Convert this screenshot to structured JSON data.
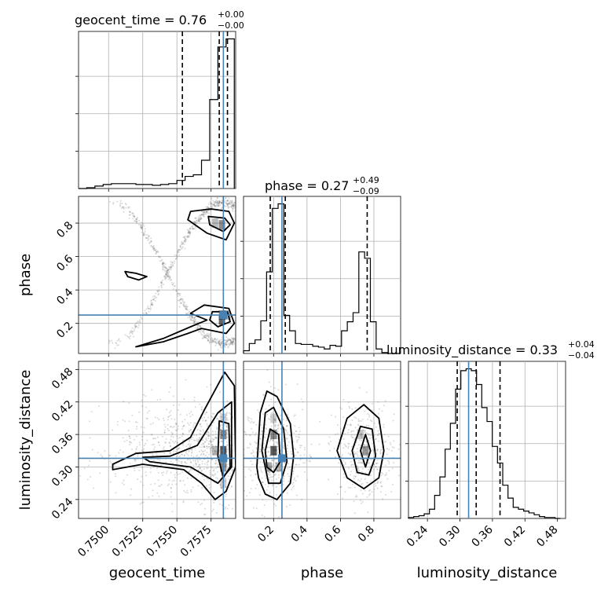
{
  "chart_data": {
    "type": "corner",
    "truth_color": "#4682b4",
    "parameters": [
      {
        "name": "geocent_time",
        "xlabel": "geocent_time",
        "title_main": "geocent_time = 0.76",
        "title_plus": "+0.00",
        "title_minus": "−0.00",
        "range": [
          0.7478,
          0.7593
        ],
        "ticks": [
          0.75,
          0.7525,
          0.755,
          0.7575
        ],
        "tick_labels": [
          "0.7500",
          "0.7525",
          "0.7550",
          "0.7575"
        ],
        "truth": 0.7584,
        "quantiles": [
          0.7554,
          0.7581,
          0.7587
        ],
        "hist": {
          "bin_edges": [
            0.7478,
            0.7484,
            0.749,
            0.7496,
            0.7502,
            0.7508,
            0.7514,
            0.752,
            0.7526,
            0.7532,
            0.7538,
            0.7544,
            0.755,
            0.7556,
            0.7562,
            0.7568,
            0.7574,
            0.758,
            0.7586,
            0.7592
          ],
          "counts": [
            0,
            1,
            3,
            5,
            6,
            6,
            6,
            5,
            5,
            4,
            5,
            6,
            10,
            15,
            17,
            35,
            110,
            175,
            185
          ]
        }
      },
      {
        "name": "phase",
        "xlabel": "phase",
        "ylabel": "phase",
        "title_main": "phase = 0.27",
        "title_plus": "+0.49",
        "title_minus": "−0.09",
        "range": [
          0.02,
          0.96
        ],
        "ticks": [
          0.2,
          0.4,
          0.6,
          0.8
        ],
        "tick_labels": [
          "0.2",
          "0.4",
          "0.6",
          "0.8"
        ],
        "truth": 0.25,
        "quantiles": [
          0.18,
          0.27,
          0.76
        ],
        "hist": {
          "bin_edges": [
            0.02,
            0.0545,
            0.089,
            0.1235,
            0.158,
            0.1925,
            0.227,
            0.2615,
            0.296,
            0.3305,
            0.365,
            0.3995,
            0.434,
            0.4685,
            0.503,
            0.5375,
            0.572,
            0.6065,
            0.641,
            0.6755,
            0.71,
            0.7445,
            0.779,
            0.8135,
            0.848,
            0.8825,
            0.917,
            0.9515
          ],
          "counts": [
            3,
            11,
            15,
            36,
            90,
            160,
            165,
            42,
            25,
            11,
            10,
            10,
            8,
            7,
            5,
            9,
            8,
            25,
            35,
            45,
            112,
            105,
            35,
            5,
            1,
            0,
            0
          ]
        }
      },
      {
        "name": "luminosity_distance",
        "xlabel": "luminosity_distance",
        "ylabel": "luminosity_distance",
        "title_main": "luminosity_distance = 0.33",
        "title_plus": "+0.04",
        "title_minus": "−0.04",
        "range": [
          0.205,
          0.495
        ],
        "ticks": [
          0.24,
          0.3,
          0.36,
          0.42,
          0.48
        ],
        "tick_labels": [
          "0.24",
          "0.30",
          "0.36",
          "0.42",
          "0.48"
        ],
        "truth": 0.316,
        "quantiles": [
          0.295,
          0.33,
          0.374
        ],
        "hist": {
          "bin_edges": [
            0.205,
            0.2147,
            0.2243,
            0.234,
            0.2437,
            0.2533,
            0.263,
            0.2727,
            0.2823,
            0.292,
            0.3017,
            0.3113,
            0.321,
            0.3307,
            0.3403,
            0.35,
            0.3597,
            0.3693,
            0.379,
            0.3887,
            0.3983,
            0.408,
            0.4177,
            0.4273,
            0.437,
            0.4467,
            0.4563,
            0.466,
            0.4757,
            0.4853
          ],
          "counts": [
            1,
            2,
            3,
            5,
            10,
            25,
            45,
            75,
            103,
            140,
            160,
            162,
            160,
            145,
            120,
            105,
            78,
            60,
            36,
            22,
            12,
            10,
            8,
            6,
            4,
            2,
            1,
            1,
            0
          ]
        }
      }
    ],
    "contours": {
      "geocent_time__phase": [
        [
          [
            0.756,
            0.87
          ],
          [
            0.7575,
            0.885
          ],
          [
            0.7588,
            0.87
          ],
          [
            0.7592,
            0.8
          ],
          [
            0.7586,
            0.7
          ],
          [
            0.7572,
            0.74
          ],
          [
            0.7558,
            0.82
          ],
          [
            0.756,
            0.87
          ]
        ],
        [
          [
            0.7573,
            0.84
          ],
          [
            0.7585,
            0.83
          ],
          [
            0.7589,
            0.79
          ],
          [
            0.7584,
            0.75
          ],
          [
            0.7574,
            0.79
          ],
          [
            0.7573,
            0.84
          ]
        ],
        [
          [
            0.7512,
            0.51
          ],
          [
            0.752,
            0.5
          ],
          [
            0.7528,
            0.48
          ],
          [
            0.7522,
            0.46
          ],
          [
            0.7514,
            0.48
          ],
          [
            0.7512,
            0.51
          ]
        ],
        [
          [
            0.752,
            0.06
          ],
          [
            0.754,
            0.09
          ],
          [
            0.7558,
            0.14
          ],
          [
            0.7568,
            0.17
          ],
          [
            0.7586,
            0.14
          ],
          [
            0.7592,
            0.2
          ],
          [
            0.7588,
            0.29
          ],
          [
            0.757,
            0.31
          ],
          [
            0.756,
            0.26
          ],
          [
            0.7572,
            0.22
          ],
          [
            0.756,
            0.18
          ],
          [
            0.754,
            0.11
          ],
          [
            0.752,
            0.06
          ]
        ],
        [
          [
            0.7576,
            0.27
          ],
          [
            0.7587,
            0.27
          ],
          [
            0.7589,
            0.21
          ],
          [
            0.758,
            0.18
          ],
          [
            0.7574,
            0.22
          ],
          [
            0.7576,
            0.27
          ]
        ]
      ],
      "geocent_time__luminosity_distance": [
        [
          [
            0.7503,
            0.305
          ],
          [
            0.752,
            0.325
          ],
          [
            0.7545,
            0.33
          ],
          [
            0.756,
            0.355
          ],
          [
            0.757,
            0.405
          ],
          [
            0.7585,
            0.475
          ],
          [
            0.7592,
            0.45
          ],
          [
            0.7593,
            0.3
          ],
          [
            0.7586,
            0.255
          ],
          [
            0.7578,
            0.24
          ],
          [
            0.7568,
            0.27
          ],
          [
            0.7555,
            0.295
          ],
          [
            0.754,
            0.3
          ],
          [
            0.7525,
            0.305
          ],
          [
            0.7503,
            0.295
          ],
          [
            0.7503,
            0.305
          ]
        ],
        [
          [
            0.7525,
            0.318
          ],
          [
            0.7545,
            0.32
          ],
          [
            0.7565,
            0.34
          ],
          [
            0.758,
            0.4
          ],
          [
            0.759,
            0.42
          ],
          [
            0.759,
            0.3
          ],
          [
            0.758,
            0.27
          ],
          [
            0.756,
            0.3
          ],
          [
            0.753,
            0.31
          ],
          [
            0.7525,
            0.318
          ]
        ],
        [
          [
            0.7581,
            0.385
          ],
          [
            0.7588,
            0.38
          ],
          [
            0.7589,
            0.3
          ],
          [
            0.7584,
            0.28
          ],
          [
            0.758,
            0.32
          ],
          [
            0.7581,
            0.385
          ]
        ]
      ],
      "phase__luminosity_distance": [
        [
          [
            0.1,
            0.3
          ],
          [
            0.12,
            0.4
          ],
          [
            0.16,
            0.44
          ],
          [
            0.22,
            0.43
          ],
          [
            0.3,
            0.38
          ],
          [
            0.32,
            0.32
          ],
          [
            0.3,
            0.27
          ],
          [
            0.22,
            0.24
          ],
          [
            0.15,
            0.25
          ],
          [
            0.11,
            0.28
          ],
          [
            0.1,
            0.3
          ]
        ],
        [
          [
            0.13,
            0.33
          ],
          [
            0.15,
            0.4
          ],
          [
            0.2,
            0.41
          ],
          [
            0.26,
            0.37
          ],
          [
            0.28,
            0.31
          ],
          [
            0.24,
            0.27
          ],
          [
            0.17,
            0.27
          ],
          [
            0.13,
            0.33
          ]
        ],
        [
          [
            0.15,
            0.33
          ],
          [
            0.18,
            0.37
          ],
          [
            0.23,
            0.36
          ],
          [
            0.24,
            0.31
          ],
          [
            0.2,
            0.29
          ],
          [
            0.16,
            0.3
          ],
          [
            0.15,
            0.33
          ]
        ],
        [
          [
            0.58,
            0.33
          ],
          [
            0.64,
            0.39
          ],
          [
            0.74,
            0.415
          ],
          [
            0.83,
            0.39
          ],
          [
            0.86,
            0.33
          ],
          [
            0.83,
            0.28
          ],
          [
            0.74,
            0.26
          ],
          [
            0.64,
            0.28
          ],
          [
            0.58,
            0.33
          ]
        ],
        [
          [
            0.67,
            0.33
          ],
          [
            0.72,
            0.375
          ],
          [
            0.79,
            0.37
          ],
          [
            0.81,
            0.32
          ],
          [
            0.77,
            0.285
          ],
          [
            0.7,
            0.29
          ],
          [
            0.67,
            0.33
          ]
        ],
        [
          [
            0.72,
            0.33
          ],
          [
            0.75,
            0.36
          ],
          [
            0.78,
            0.33
          ],
          [
            0.75,
            0.3
          ],
          [
            0.72,
            0.33
          ]
        ]
      ]
    },
    "density": {
      "geocent_time__phase": [
        [
          0.7583,
          0.79,
          0.6
        ],
        [
          0.7583,
          0.22,
          0.8
        ],
        [
          0.7583,
          0.25,
          0.55
        ],
        [
          0.7578,
          0.8,
          0.35
        ],
        [
          0.7587,
          0.25,
          0.4
        ]
      ],
      "geocent_time__luminosity_distance": [
        [
          0.7584,
          0.33,
          0.85
        ],
        [
          0.7584,
          0.36,
          0.6
        ],
        [
          0.7584,
          0.3,
          0.55
        ],
        [
          0.7578,
          0.33,
          0.35
        ],
        [
          0.7584,
          0.39,
          0.25
        ],
        [
          0.7584,
          0.27,
          0.25
        ]
      ],
      "phase__luminosity_distance": [
        [
          0.2,
          0.33,
          0.85
        ],
        [
          0.2,
          0.36,
          0.6
        ],
        [
          0.17,
          0.3,
          0.45
        ],
        [
          0.23,
          0.3,
          0.35
        ],
        [
          0.75,
          0.33,
          0.55
        ],
        [
          0.72,
          0.36,
          0.3
        ],
        [
          0.2,
          0.39,
          0.25
        ]
      ]
    }
  }
}
